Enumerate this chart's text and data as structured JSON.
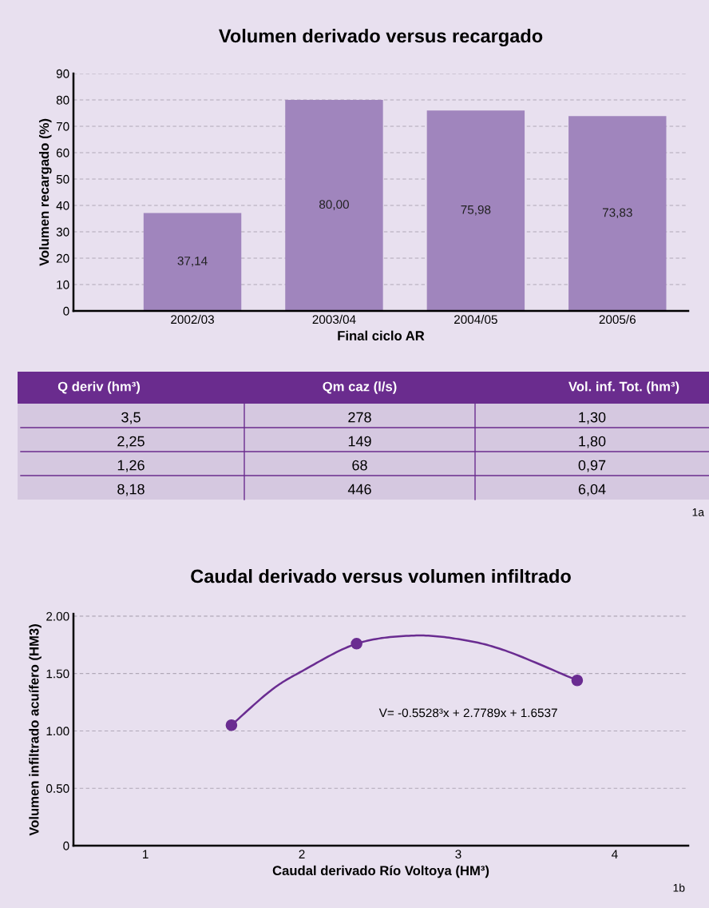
{
  "chart_data": [
    {
      "type": "bar",
      "title": "Volumen derivado versus recargado",
      "xlabel": "Final ciclo AR",
      "ylabel": "Volumen recargado (%)",
      "categories": [
        "2002/03",
        "2003/04",
        "2004/05",
        "2005/6"
      ],
      "values": [
        37.14,
        80.0,
        75.98,
        73.83
      ],
      "color": "#a085bd",
      "value_labels": [
        "37,14",
        "80,00",
        "75,98",
        "73,83"
      ],
      "ylim": [
        0,
        90
      ],
      "yticks": [
        0,
        10,
        20,
        30,
        40,
        50,
        60,
        70,
        80,
        90
      ],
      "grid": "y"
    },
    {
      "type": "other",
      "categories": [
        "Q deriv (hm³)",
        "Qm caz (l/s)",
        "Vol. inf. Tot. (hm³)"
      ],
      "cell_labels": [
        [
          "3,5",
          "278",
          "1,30"
        ],
        [
          "2,25",
          "149",
          "1,80"
        ],
        [
          "1,26",
          "68",
          "0,97"
        ],
        [
          "8,18",
          "446",
          "6,04"
        ]
      ],
      "annotations": [
        "1a"
      ]
    },
    {
      "type": "scatter",
      "title": "Caudal derivado versus volumen infiltrado",
      "xlabel": "Caudal derivado Río Voltoya (HM³)",
      "ylabel": "Volumen infiltrado acuífero (HM3)",
      "series": [
        {
          "type": "scatter",
          "color": "#6a2c91",
          "x": [
            1.55,
            2.35,
            3.76
          ],
          "values": [
            1.05,
            1.76,
            1.44
          ],
          "marker": "circle"
        },
        {
          "type": "line",
          "color": "#6a2c91",
          "x": [
            1.55,
            1.8,
            2.0,
            2.35,
            2.7,
            3.0,
            3.3,
            3.76
          ],
          "values": [
            1.05,
            1.35,
            1.52,
            1.76,
            1.83,
            1.8,
            1.7,
            1.44
          ],
          "marker": "none"
        }
      ],
      "xlim": [
        0.54,
        4.47
      ],
      "xticks": [
        1,
        2,
        3,
        4
      ],
      "ylim": [
        0,
        2.02
      ],
      "yticks": [
        0,
        {
          "value": 0.5,
          "label": "0.50"
        },
        {
          "value": 1,
          "label": "1.00"
        },
        {
          "value": 1.5,
          "label": "1.50"
        },
        {
          "value": 2,
          "label": "2.00"
        }
      ],
      "grid": "y",
      "annotations": [
        "V= -0.5528³x + 2.7789x + 1.6537",
        "1b"
      ]
    }
  ]
}
